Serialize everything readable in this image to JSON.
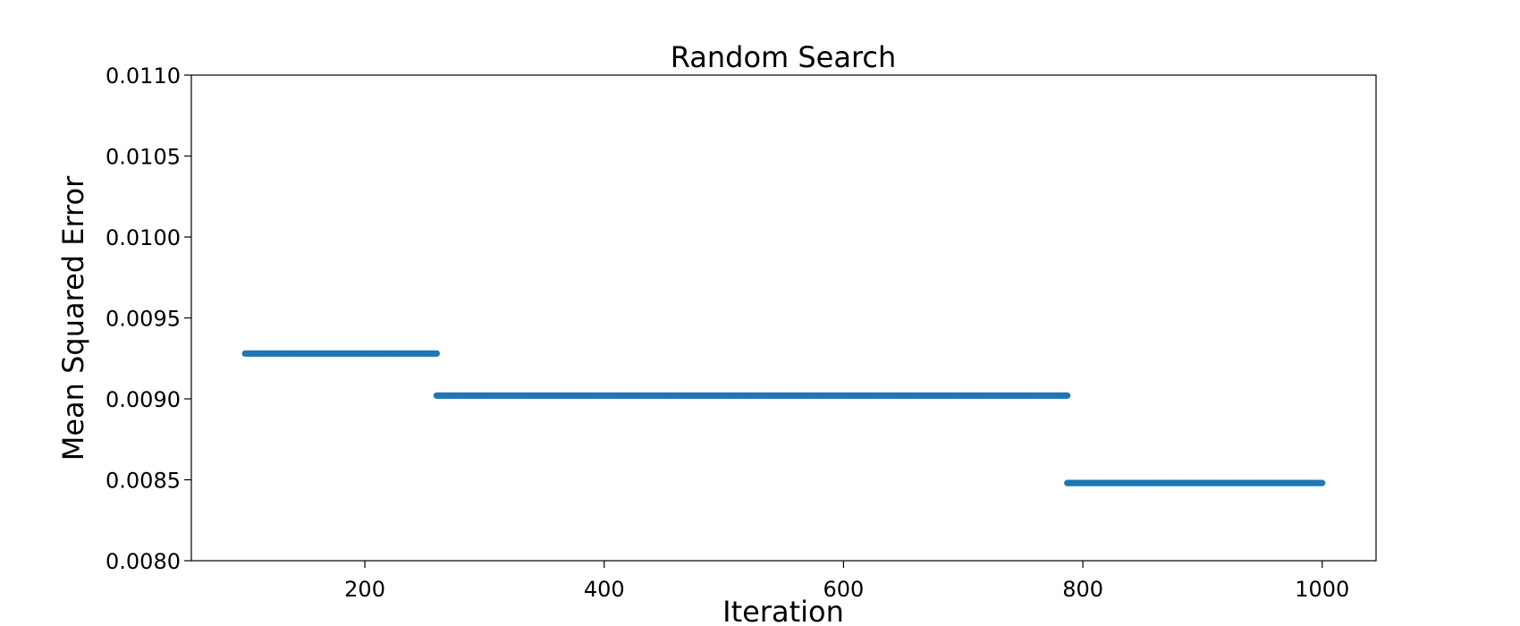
{
  "chart_data": {
    "type": "scatter",
    "title": "Random Search",
    "xlabel": "Iteration",
    "ylabel": "Mean Squared Error",
    "xlim": [
      55,
      1045
    ],
    "ylim": [
      0.008,
      0.011
    ],
    "xticks": [
      200,
      400,
      600,
      800,
      1000
    ],
    "yticks": [
      0.008,
      0.0085,
      0.009,
      0.0095,
      0.01,
      0.0105,
      0.011
    ],
    "xtick_labels": [
      "200",
      "400",
      "600",
      "800",
      "1000"
    ],
    "ytick_labels": [
      "0.0080",
      "0.0085",
      "0.0090",
      "0.0095",
      "0.0100",
      "0.0105",
      "0.0110"
    ],
    "grid": false,
    "marker_color": "#1f77b4",
    "segments": [
      {
        "x_start": 100,
        "x_end": 260,
        "y": 0.00928
      },
      {
        "x_start": 260,
        "x_end": 787,
        "y": 0.00902
      },
      {
        "x_start": 787,
        "x_end": 1000,
        "y": 0.00848
      }
    ]
  }
}
